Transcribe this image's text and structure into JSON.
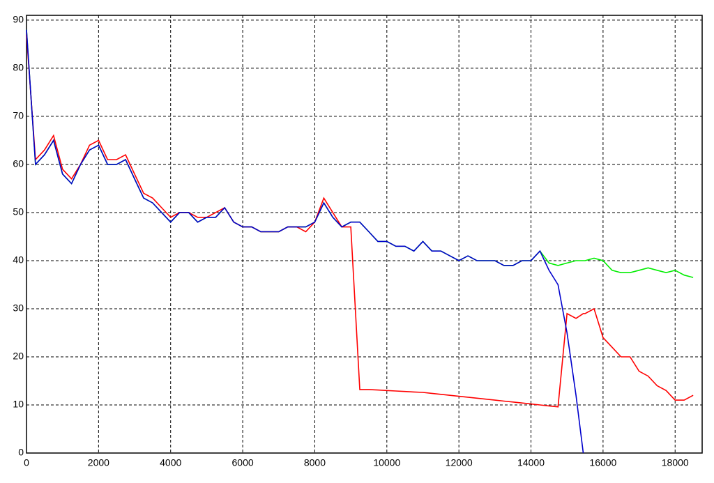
{
  "chart_data": {
    "type": "line",
    "x": [
      0,
      250,
      500,
      750,
      1000,
      1250,
      1500,
      1750,
      2000,
      2250,
      2500,
      2750,
      3000,
      3250,
      3500,
      3750,
      4000,
      4250,
      4500,
      4750,
      5000,
      5250,
      5500,
      5750,
      6000,
      6250,
      6500,
      6750,
      7000,
      7250,
      7500,
      7750,
      8000,
      8250,
      8500,
      8750,
      9000,
      9250,
      9500,
      9750,
      10000,
      10250,
      10500,
      10750,
      11000,
      11250,
      11500,
      11750,
      12000,
      12250,
      12500,
      12750,
      13000,
      13250,
      13500,
      13750,
      14000,
      14250,
      14500,
      14750,
      15000,
      15250,
      15450,
      15500,
      15750,
      16000,
      16250,
      16500,
      16750,
      17000,
      17250,
      17500,
      17750,
      18000,
      18250,
      18500
    ],
    "series": [
      {
        "color": "#00ee00",
        "values": [
          88,
          60,
          62,
          65,
          58,
          56,
          60,
          63,
          64,
          60,
          60,
          61,
          57,
          53,
          52,
          50,
          48,
          50,
          50,
          48,
          49,
          49,
          51,
          48,
          47,
          47,
          46,
          46,
          46,
          47,
          47,
          47,
          48,
          52,
          49,
          47,
          48,
          48,
          46,
          44,
          44,
          43,
          43,
          42,
          44,
          42,
          42,
          41,
          40,
          41,
          40,
          40,
          40,
          39,
          39,
          40,
          40,
          42,
          39.5,
          39,
          39.5,
          40,
          40,
          40,
          40.5,
          40,
          38,
          37.5,
          37.5,
          38,
          38.5,
          38,
          37.5,
          38,
          37,
          36.5
        ]
      },
      {
        "color": "#ff0000",
        "values": [
          87,
          61,
          63,
          66,
          59,
          57,
          60,
          64,
          65,
          61,
          61,
          62,
          58,
          54,
          53,
          51,
          49,
          50,
          50,
          49,
          49,
          50,
          51,
          48,
          47,
          47,
          46,
          46,
          46,
          47,
          47,
          46,
          48,
          53,
          50,
          47,
          47,
          13.2,
          13.2,
          13.1,
          13,
          12.9,
          12.8,
          12.7,
          12.6,
          12.4,
          12.2,
          12,
          11.8,
          11.6,
          11.4,
          11.2,
          11,
          10.8,
          10.6,
          10.4,
          10.2,
          10,
          9.8,
          9.6,
          29,
          28,
          29,
          29,
          30,
          24,
          22,
          20,
          20,
          17,
          16,
          14,
          13,
          11,
          11,
          12
        ]
      },
      {
        "color": "#0000cc",
        "values": [
          88,
          60,
          62,
          65,
          58,
          56,
          60,
          63,
          64,
          60,
          60,
          61,
          57,
          53,
          52,
          50,
          48,
          50,
          50,
          48,
          49,
          49,
          51,
          48,
          47,
          47,
          46,
          46,
          46,
          47,
          47,
          47,
          48,
          52,
          49,
          47,
          48,
          48,
          46,
          44,
          44,
          43,
          43,
          42,
          44,
          42,
          42,
          41,
          40,
          41,
          40,
          40,
          40,
          39,
          39,
          40,
          40,
          42,
          38,
          35,
          25,
          12,
          0,
          null,
          null,
          null,
          null,
          null,
          null,
          null,
          null,
          null,
          null,
          null,
          null,
          null
        ]
      }
    ],
    "xlim": [
      0,
      18750
    ],
    "ylim": [
      0,
      91
    ],
    "xticks": [
      0,
      2000,
      4000,
      6000,
      8000,
      10000,
      12000,
      14000,
      16000,
      18000
    ],
    "yticks": [
      0,
      10,
      20,
      30,
      40,
      50,
      60,
      70,
      80,
      90
    ],
    "grid": true
  }
}
